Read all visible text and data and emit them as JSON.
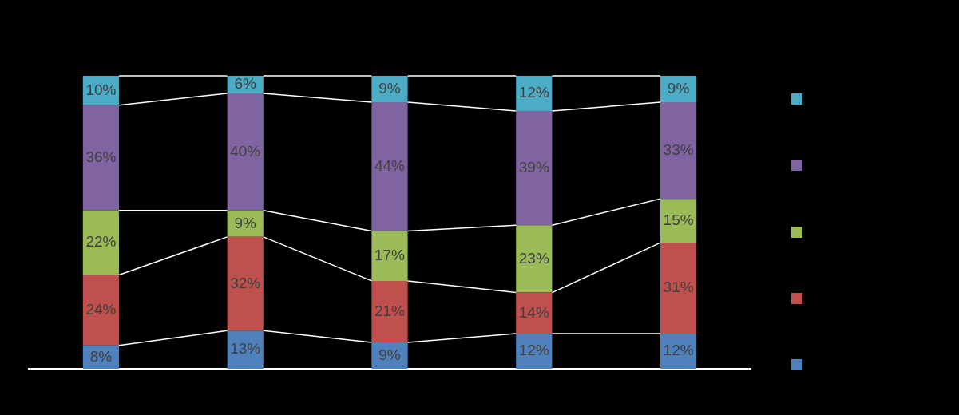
{
  "chart_data": {
    "type": "bar",
    "stacked": true,
    "categories": [
      null,
      null,
      null,
      null,
      null
    ],
    "tick_labels": false,
    "series": [
      {
        "color": "#4f81bd",
        "values": [
          8,
          13,
          9,
          12,
          12
        ],
        "value_labels": [
          "8%",
          "13%",
          "9%",
          "12%",
          "12%"
        ]
      },
      {
        "color": "#c0504d",
        "values": [
          24,
          32,
          21,
          14,
          31
        ],
        "value_labels": [
          "24%",
          "32%",
          "21%",
          "14%",
          "31%"
        ]
      },
      {
        "color": "#9bbb59",
        "values": [
          22,
          9,
          17,
          23,
          15
        ],
        "value_labels": [
          "22%",
          "9%",
          "17%",
          "23%",
          "15%"
        ]
      },
      {
        "color": "#8064a2",
        "values": [
          36,
          40,
          44,
          39,
          33
        ],
        "value_labels": [
          "36%",
          "40%",
          "44%",
          "39%",
          "33%"
        ]
      },
      {
        "color": "#4bacc6",
        "values": [
          10,
          6,
          9,
          12,
          9
        ],
        "value_labels": [
          "10%",
          "6%",
          "9%",
          "12%",
          "9%"
        ]
      }
    ]
  }
}
